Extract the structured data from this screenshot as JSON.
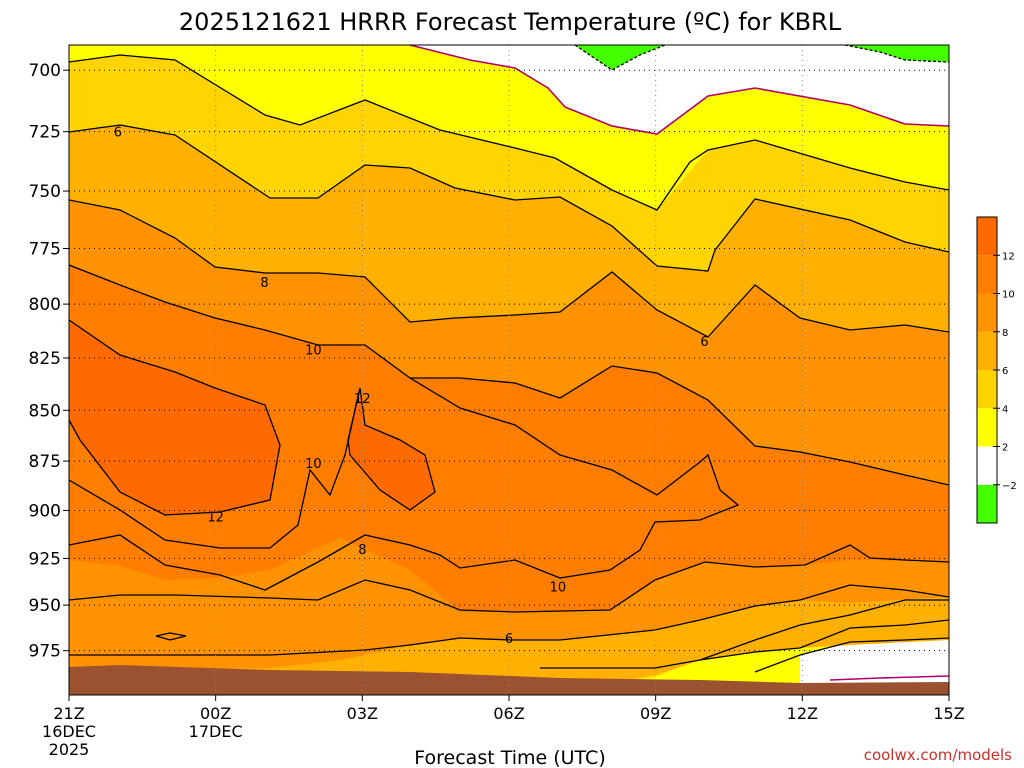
{
  "chart_data": {
    "type": "heatmap",
    "title": "2025121621 HRRR Forecast Temperature (ºC) for KBRL",
    "xlabel": "Forecast Time (UTC)",
    "credit": "coolwx.com/models",
    "x_ticks": [
      {
        "hour": 0,
        "label": "21Z",
        "sub1": "16DEC",
        "sub2": "2025"
      },
      {
        "hour": 3,
        "label": "00Z",
        "sub1": "17DEC",
        "sub2": ""
      },
      {
        "hour": 6,
        "label": "03Z",
        "sub1": "",
        "sub2": ""
      },
      {
        "hour": 9,
        "label": "06Z",
        "sub1": "",
        "sub2": ""
      },
      {
        "hour": 12,
        "label": "09Z",
        "sub1": "",
        "sub2": ""
      },
      {
        "hour": 15,
        "label": "12Z",
        "sub1": "",
        "sub2": ""
      },
      {
        "hour": 18,
        "label": "15Z",
        "sub1": "",
        "sub2": ""
      }
    ],
    "xlim": [
      0,
      18
    ],
    "y_ticks": [
      "700",
      "725",
      "750",
      "775",
      "800",
      "825",
      "850",
      "875",
      "900",
      "925",
      "950",
      "975"
    ],
    "ylim": [
      690,
      1000
    ],
    "y_scale": "log-pressure (inverted)",
    "grid": "dotted",
    "colorbar": {
      "levels": [
        -2,
        2,
        4,
        6,
        8,
        10,
        12
      ],
      "labels": [
        "−2",
        "2",
        "4",
        "6",
        "8",
        "10",
        "12"
      ],
      "colors": [
        "#44ff00",
        "#ffffff",
        "#ffff00",
        "#ffd400",
        "#ffb000",
        "#ff9200",
        "#ff7e00",
        "#ff6a00"
      ],
      "placement": "right"
    },
    "contour_labels": [
      {
        "text": "6",
        "hour": 1.0,
        "p": 725
      },
      {
        "text": "8",
        "hour": 4.0,
        "p": 790
      },
      {
        "text": "10",
        "hour": 5.0,
        "p": 821
      },
      {
        "text": "12",
        "hour": 6.0,
        "p": 844
      },
      {
        "text": "10",
        "hour": 5.0,
        "p": 876
      },
      {
        "text": "12",
        "hour": 3.0,
        "p": 903
      },
      {
        "text": "8",
        "hour": 6.0,
        "p": 920
      },
      {
        "text": "10",
        "hour": 10.0,
        "p": 940
      },
      {
        "text": "6",
        "hour": 9.0,
        "p": 968
      },
      {
        "text": "6",
        "hour": 13.0,
        "p": 817
      }
    ],
    "ground": {
      "p_start": 983,
      "p_end": 990,
      "color": "#9b5230"
    }
  },
  "colors": {
    "green": "#44ff00",
    "yellow": "#ffff00",
    "gold": "#ffd400",
    "amber": "#ffb000",
    "orange1": "#ff9200",
    "orange2": "#ff7e00",
    "orange3": "#ff6a00",
    "freezing_line": "#b0006a",
    "ground": "#9b5230"
  }
}
